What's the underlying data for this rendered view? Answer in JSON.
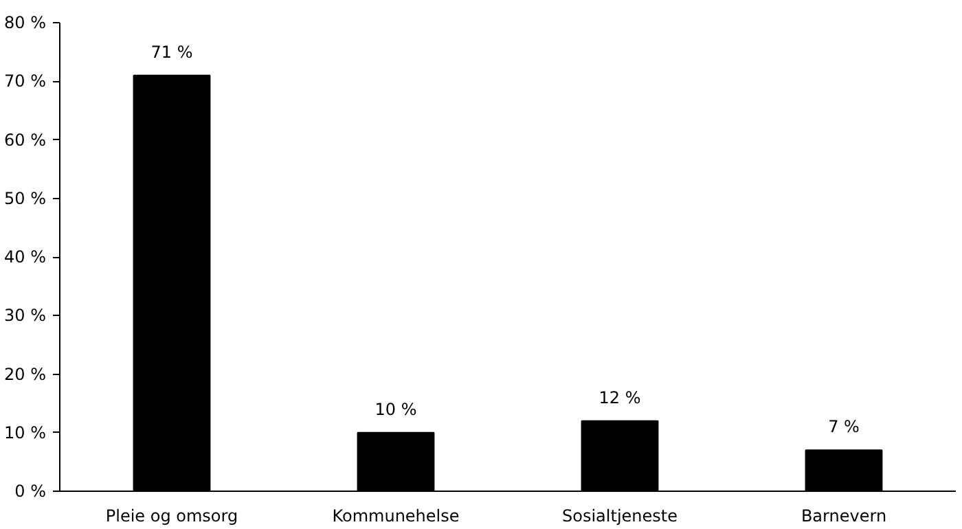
{
  "chart_data": {
    "type": "bar",
    "categories": [
      "Pleie og omsorg",
      "Kommunehelse",
      "Sosialtjeneste",
      "Barnevern"
    ],
    "values": [
      71,
      10,
      12,
      7
    ],
    "color": "#000000",
    "value_labels": [
      "71 %",
      "10 %",
      "12 %",
      "7 %"
    ],
    "ylim": [
      0,
      80
    ],
    "yticks": [
      {
        "value": 0,
        "label": "0 %"
      },
      {
        "value": 10,
        "label": "10 %"
      },
      {
        "value": 20,
        "label": "20 %"
      },
      {
        "value": 30,
        "label": "30 %"
      },
      {
        "value": 40,
        "label": "40 %"
      },
      {
        "value": 50,
        "label": "50 %"
      },
      {
        "value": 60,
        "label": "60 %"
      },
      {
        "value": 70,
        "label": "70 %"
      },
      {
        "value": 80,
        "label": "80 %"
      }
    ],
    "grid": false
  }
}
